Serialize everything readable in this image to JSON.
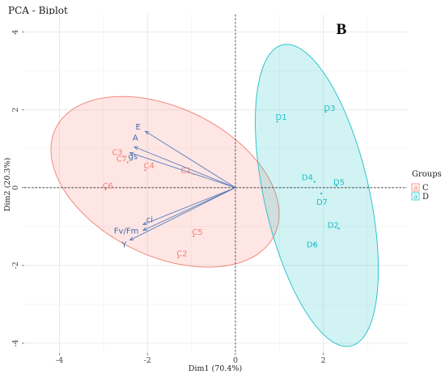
{
  "chart_data": {
    "type": "scatter",
    "title": "PCA - Biplot",
    "panel_label": "B",
    "xlabel": "Dim1 (70.4%)",
    "ylabel": "Dim2 (20.3%)",
    "xlim": [
      -4.8,
      3.9
    ],
    "ylim": [
      -4.25,
      4.45
    ],
    "x_ticks": [
      -4,
      -2,
      0,
      2
    ],
    "y_ticks": [
      -4,
      -2,
      0,
      2,
      4
    ],
    "grid": true,
    "legend": {
      "title": "Groups",
      "placement": "right",
      "entries": [
        {
          "key": "a",
          "label": "C",
          "color": "#f08070"
        },
        {
          "key": "a",
          "label": "D",
          "color": "#20bfc8"
        }
      ]
    },
    "groups": [
      {
        "name": "C",
        "color": "#f08070",
        "fill": "#f8766d",
        "ellipse": {
          "cx": -1.6,
          "cy": 0.15,
          "rx": 2.85,
          "ry": 1.85,
          "angle_deg": -33
        },
        "points": [
          {
            "label": "C1",
            "x": -0.95,
            "y": 0.35
          },
          {
            "label": "C2",
            "x": -1.3,
            "y": -1.8
          },
          {
            "label": "C3",
            "x": -2.55,
            "y": 0.8
          },
          {
            "label": "C4",
            "x": -2.05,
            "y": 0.45
          },
          {
            "label": "C5",
            "x": -0.95,
            "y": -1.25
          },
          {
            "label": "C6",
            "x": -2.95,
            "y": -0.05
          },
          {
            "label": "C7",
            "x": -2.45,
            "y": 0.65
          }
        ]
      },
      {
        "name": "D",
        "color": "#20bfc8",
        "fill": "#00bfc4",
        "ellipse": {
          "cx": 1.85,
          "cy": -0.2,
          "rx": 3.95,
          "ry": 1.2,
          "angle_deg": -79
        },
        "points": [
          {
            "label": "D1",
            "x": 0.95,
            "y": 1.7
          },
          {
            "label": "D2",
            "x": 2.35,
            "y": -1.05
          },
          {
            "label": "D3",
            "x": 2.05,
            "y": 1.95
          },
          {
            "label": "D4",
            "x": 1.8,
            "y": 0.15
          },
          {
            "label": "D5",
            "x": 2.3,
            "y": 0.05
          },
          {
            "label": "D6",
            "x": 1.8,
            "y": -1.45
          },
          {
            "label": "D7",
            "x": 1.95,
            "y": -0.15
          }
        ]
      }
    ],
    "variables": [
      {
        "label": "E",
        "x": -2.05,
        "y": 1.45
      },
      {
        "label": "A",
        "x": -2.3,
        "y": 1.05
      },
      {
        "label": "gs",
        "x": -2.4,
        "y": 0.9
      },
      {
        "label": "ci",
        "x": -2.1,
        "y": -0.95
      },
      {
        "label": "Fv/Fm",
        "x": -2.1,
        "y": -1.1
      },
      {
        "label": "Y",
        "x": -2.4,
        "y": -1.35
      }
    ]
  }
}
